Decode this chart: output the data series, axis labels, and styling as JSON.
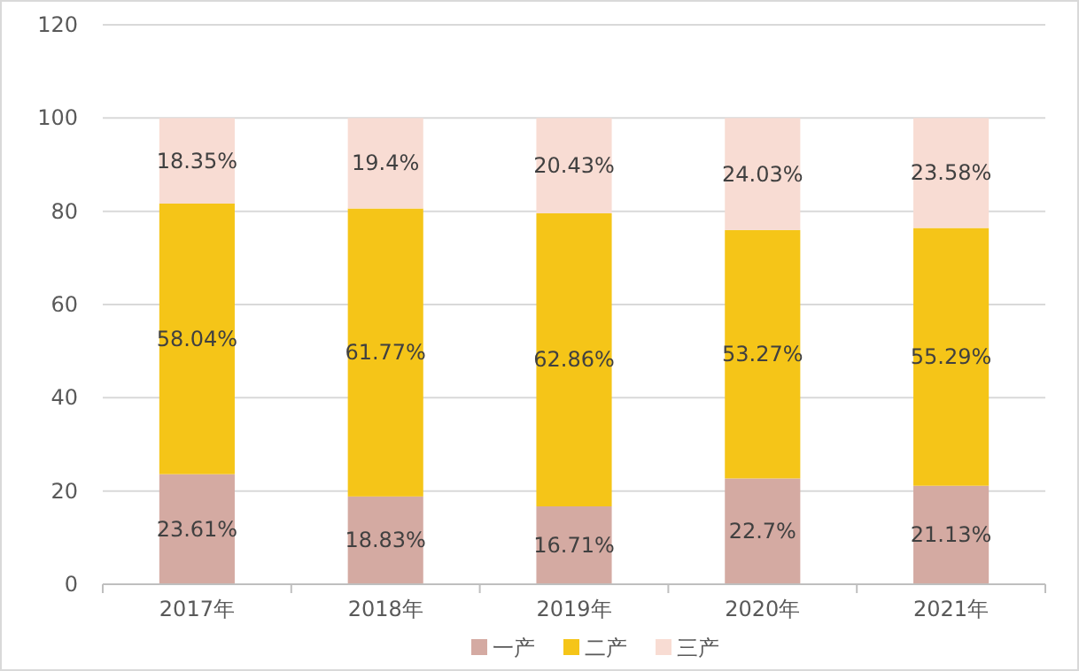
{
  "chart_data": {
    "type": "bar",
    "stacked": true,
    "categories": [
      "2017年",
      "2018年",
      "2019年",
      "2020年",
      "2021年"
    ],
    "series": [
      {
        "name": "一产",
        "color": "#d4aaa2",
        "values": [
          23.61,
          18.83,
          16.71,
          22.7,
          21.13
        ],
        "value_labels": [
          "23.61%",
          "18.83%",
          "16.71%",
          "22.7%",
          "21.13%"
        ]
      },
      {
        "name": "二产",
        "color": "#f5c518",
        "values": [
          58.04,
          61.77,
          62.86,
          53.27,
          55.29
        ],
        "value_labels": [
          "58.04%",
          "61.77%",
          "62.86%",
          "53.27%",
          "55.29%"
        ]
      },
      {
        "name": "三产",
        "color": "#f8dcd3",
        "values": [
          18.35,
          19.4,
          20.43,
          24.03,
          23.58
        ],
        "value_labels": [
          "18.35%",
          "19.4%",
          "20.43%",
          "24.03%",
          "23.58%"
        ]
      }
    ],
    "ylim": [
      0,
      120
    ],
    "yticks": [
      0,
      20,
      40,
      60,
      80,
      100,
      120
    ],
    "grid": "y",
    "legend": "bottom"
  }
}
